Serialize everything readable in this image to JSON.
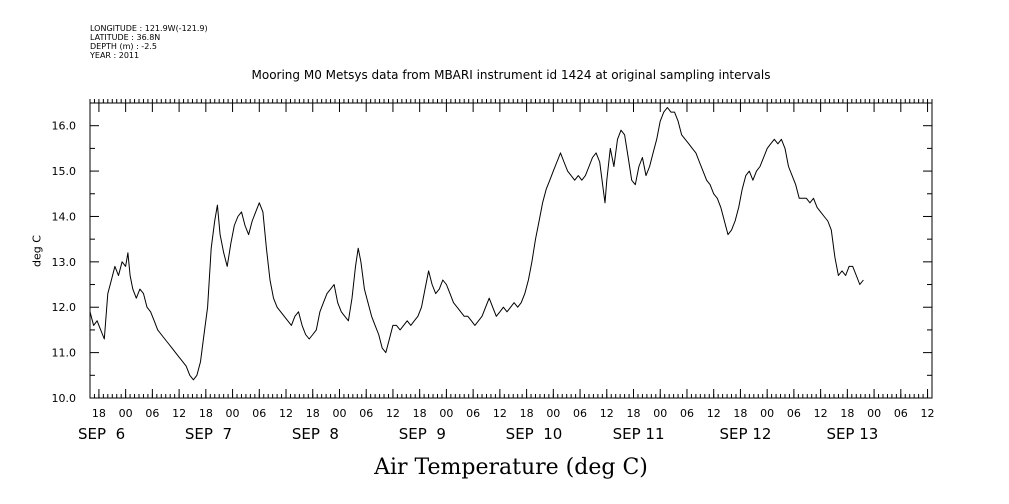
{
  "metadata": {
    "longitude": "LONGITUDE : 121.9W(-121.9)",
    "latitude": "LATITUDE : 36.8N",
    "depth": "DEPTH (m) : -2.5",
    "year": "YEAR : 2011"
  },
  "chart_data": {
    "type": "line",
    "title": "Mooring M0 Metsys data from MBARI instrument id 1424 at original sampling intervals",
    "xlabel": "Air Temperature (deg C)",
    "ylabel": "deg C",
    "ylim": [
      10.0,
      16.5
    ],
    "yticks": [
      "10.0",
      "11.0",
      "12.0",
      "13.0",
      "14.0",
      "15.0",
      "16.0"
    ],
    "xlim_hours": [
      -8,
      181
    ],
    "xtick_hour_labels": [
      {
        "t": -6,
        "label": "18"
      },
      {
        "t": 0,
        "label": "00"
      },
      {
        "t": 6,
        "label": "06"
      },
      {
        "t": 12,
        "label": "12"
      },
      {
        "t": 18,
        "label": "18"
      },
      {
        "t": 24,
        "label": "00"
      },
      {
        "t": 30,
        "label": "06"
      },
      {
        "t": 36,
        "label": "12"
      },
      {
        "t": 42,
        "label": "18"
      },
      {
        "t": 48,
        "label": "00"
      },
      {
        "t": 54,
        "label": "06"
      },
      {
        "t": 60,
        "label": "12"
      },
      {
        "t": 66,
        "label": "18"
      },
      {
        "t": 72,
        "label": "00"
      },
      {
        "t": 78,
        "label": "06"
      },
      {
        "t": 84,
        "label": "12"
      },
      {
        "t": 90,
        "label": "18"
      },
      {
        "t": 96,
        "label": "00"
      },
      {
        "t": 102,
        "label": "06"
      },
      {
        "t": 108,
        "label": "12"
      },
      {
        "t": 114,
        "label": "18"
      },
      {
        "t": 120,
        "label": "00"
      },
      {
        "t": 126,
        "label": "06"
      },
      {
        "t": 132,
        "label": "12"
      },
      {
        "t": 138,
        "label": "18"
      },
      {
        "t": 144,
        "label": "00"
      },
      {
        "t": 150,
        "label": "06"
      },
      {
        "t": 156,
        "label": "12"
      },
      {
        "t": 162,
        "label": "18"
      },
      {
        "t": 168,
        "label": "00"
      },
      {
        "t": 174,
        "label": "06"
      },
      {
        "t": 180,
        "label": "12"
      }
    ],
    "xtick_day_labels": [
      {
        "t": -8,
        "label": "SEP  6"
      },
      {
        "t": 16,
        "label": "SEP  7"
      },
      {
        "t": 40,
        "label": "SEP  8"
      },
      {
        "t": 64,
        "label": "SEP  9"
      },
      {
        "t": 88,
        "label": "SEP  10"
      },
      {
        "t": 112,
        "label": "SEP 11"
      },
      {
        "t": 136,
        "label": "SEP 12"
      },
      {
        "t": 160,
        "label": "SEP 13"
      }
    ],
    "series": [
      {
        "color": "#000000",
        "points": [
          [
            -8.0,
            11.9
          ],
          [
            -7.2,
            11.6
          ],
          [
            -6.4,
            11.7
          ],
          [
            -5.6,
            11.5
          ],
          [
            -4.8,
            11.3
          ],
          [
            -4.0,
            12.3
          ],
          [
            -3.2,
            12.6
          ],
          [
            -2.4,
            12.9
          ],
          [
            -1.6,
            12.7
          ],
          [
            -0.8,
            13.0
          ],
          [
            0.0,
            12.9
          ],
          [
            0.5,
            13.2
          ],
          [
            1.0,
            12.7
          ],
          [
            1.6,
            12.4
          ],
          [
            2.4,
            12.2
          ],
          [
            3.2,
            12.4
          ],
          [
            4.0,
            12.3
          ],
          [
            4.8,
            12.0
          ],
          [
            5.6,
            11.9
          ],
          [
            6.4,
            11.7
          ],
          [
            7.2,
            11.5
          ],
          [
            8.0,
            11.4
          ],
          [
            8.8,
            11.3
          ],
          [
            9.6,
            11.2
          ],
          [
            10.4,
            11.1
          ],
          [
            11.2,
            11.0
          ],
          [
            12.0,
            10.9
          ],
          [
            12.8,
            10.8
          ],
          [
            13.6,
            10.7
          ],
          [
            14.4,
            10.5
          ],
          [
            15.2,
            10.4
          ],
          [
            16.0,
            10.5
          ],
          [
            16.8,
            10.8
          ],
          [
            17.6,
            11.4
          ],
          [
            18.4,
            12.0
          ],
          [
            19.2,
            13.3
          ],
          [
            20.0,
            13.9
          ],
          [
            20.6,
            14.25
          ],
          [
            21.2,
            13.6
          ],
          [
            22.0,
            13.2
          ],
          [
            22.8,
            12.9
          ],
          [
            23.6,
            13.4
          ],
          [
            24.4,
            13.8
          ],
          [
            25.2,
            14.0
          ],
          [
            26.0,
            14.1
          ],
          [
            26.8,
            13.8
          ],
          [
            27.6,
            13.6
          ],
          [
            28.4,
            13.9
          ],
          [
            29.2,
            14.1
          ],
          [
            30.0,
            14.3
          ],
          [
            30.8,
            14.1
          ],
          [
            31.6,
            13.3
          ],
          [
            32.4,
            12.6
          ],
          [
            33.2,
            12.2
          ],
          [
            34.0,
            12.0
          ],
          [
            34.8,
            11.9
          ],
          [
            35.6,
            11.8
          ],
          [
            36.4,
            11.7
          ],
          [
            37.2,
            11.6
          ],
          [
            38.0,
            11.8
          ],
          [
            38.8,
            11.9
          ],
          [
            39.6,
            11.6
          ],
          [
            40.4,
            11.4
          ],
          [
            41.2,
            11.3
          ],
          [
            42.0,
            11.4
          ],
          [
            42.8,
            11.5
          ],
          [
            43.6,
            11.9
          ],
          [
            44.4,
            12.1
          ],
          [
            45.2,
            12.3
          ],
          [
            46.0,
            12.4
          ],
          [
            46.8,
            12.5
          ],
          [
            47.6,
            12.1
          ],
          [
            48.4,
            11.9
          ],
          [
            49.2,
            11.8
          ],
          [
            50.0,
            11.7
          ],
          [
            50.8,
            12.2
          ],
          [
            51.6,
            12.9
          ],
          [
            52.2,
            13.3
          ],
          [
            52.8,
            13.0
          ],
          [
            53.6,
            12.4
          ],
          [
            54.4,
            12.1
          ],
          [
            55.2,
            11.8
          ],
          [
            56.0,
            11.6
          ],
          [
            56.8,
            11.4
          ],
          [
            57.6,
            11.1
          ],
          [
            58.4,
            11.0
          ],
          [
            59.2,
            11.3
          ],
          [
            60.0,
            11.6
          ],
          [
            60.8,
            11.6
          ],
          [
            61.6,
            11.5
          ],
          [
            62.4,
            11.6
          ],
          [
            63.2,
            11.7
          ],
          [
            64.0,
            11.6
          ],
          [
            64.8,
            11.7
          ],
          [
            65.6,
            11.8
          ],
          [
            66.4,
            12.0
          ],
          [
            67.2,
            12.4
          ],
          [
            68.0,
            12.8
          ],
          [
            68.8,
            12.5
          ],
          [
            69.6,
            12.3
          ],
          [
            70.4,
            12.4
          ],
          [
            71.2,
            12.6
          ],
          [
            72.0,
            12.5
          ],
          [
            72.8,
            12.3
          ],
          [
            73.6,
            12.1
          ],
          [
            74.4,
            12.0
          ],
          [
            75.2,
            11.9
          ],
          [
            76.0,
            11.8
          ],
          [
            76.8,
            11.8
          ],
          [
            77.6,
            11.7
          ],
          [
            78.4,
            11.6
          ],
          [
            79.2,
            11.7
          ],
          [
            80.0,
            11.8
          ],
          [
            80.8,
            12.0
          ],
          [
            81.6,
            12.2
          ],
          [
            82.4,
            12.0
          ],
          [
            83.2,
            11.8
          ],
          [
            84.0,
            11.9
          ],
          [
            84.8,
            12.0
          ],
          [
            85.6,
            11.9
          ],
          [
            86.4,
            12.0
          ],
          [
            87.2,
            12.1
          ],
          [
            88.0,
            12.0
          ],
          [
            88.8,
            12.1
          ],
          [
            89.6,
            12.3
          ],
          [
            90.4,
            12.6
          ],
          [
            91.2,
            13.0
          ],
          [
            92.0,
            13.5
          ],
          [
            92.8,
            13.9
          ],
          [
            93.6,
            14.3
          ],
          [
            94.4,
            14.6
          ],
          [
            95.2,
            14.8
          ],
          [
            96.0,
            15.0
          ],
          [
            96.8,
            15.2
          ],
          [
            97.6,
            15.4
          ],
          [
            98.4,
            15.2
          ],
          [
            99.2,
            15.0
          ],
          [
            100.0,
            14.9
          ],
          [
            100.8,
            14.8
          ],
          [
            101.6,
            14.9
          ],
          [
            102.4,
            14.8
          ],
          [
            103.2,
            14.9
          ],
          [
            104.0,
            15.1
          ],
          [
            104.8,
            15.3
          ],
          [
            105.6,
            15.4
          ],
          [
            106.4,
            15.2
          ],
          [
            107.2,
            14.6
          ],
          [
            107.6,
            14.3
          ],
          [
            108.0,
            14.8
          ],
          [
            108.8,
            15.5
          ],
          [
            109.6,
            15.1
          ],
          [
            110.4,
            15.7
          ],
          [
            111.2,
            15.9
          ],
          [
            112.0,
            15.8
          ],
          [
            112.8,
            15.3
          ],
          [
            113.6,
            14.8
          ],
          [
            114.4,
            14.7
          ],
          [
            115.2,
            15.1
          ],
          [
            116.0,
            15.3
          ],
          [
            116.8,
            14.9
          ],
          [
            117.6,
            15.1
          ],
          [
            118.4,
            15.4
          ],
          [
            119.2,
            15.7
          ],
          [
            120.0,
            16.1
          ],
          [
            120.8,
            16.3
          ],
          [
            121.6,
            16.4
          ],
          [
            122.4,
            16.3
          ],
          [
            123.2,
            16.3
          ],
          [
            124.0,
            16.1
          ],
          [
            124.8,
            15.8
          ],
          [
            125.6,
            15.7
          ],
          [
            126.4,
            15.6
          ],
          [
            127.2,
            15.5
          ],
          [
            128.0,
            15.4
          ],
          [
            128.8,
            15.2
          ],
          [
            129.6,
            15.0
          ],
          [
            130.4,
            14.8
          ],
          [
            131.2,
            14.7
          ],
          [
            132.0,
            14.5
          ],
          [
            132.8,
            14.4
          ],
          [
            133.6,
            14.2
          ],
          [
            134.4,
            13.9
          ],
          [
            135.2,
            13.6
          ],
          [
            136.0,
            13.7
          ],
          [
            136.8,
            13.9
          ],
          [
            137.6,
            14.2
          ],
          [
            138.4,
            14.6
          ],
          [
            139.2,
            14.9
          ],
          [
            140.0,
            15.0
          ],
          [
            140.8,
            14.8
          ],
          [
            141.6,
            15.0
          ],
          [
            142.4,
            15.1
          ],
          [
            143.2,
            15.3
          ],
          [
            144.0,
            15.5
          ],
          [
            144.8,
            15.6
          ],
          [
            145.6,
            15.7
          ],
          [
            146.4,
            15.6
          ],
          [
            147.2,
            15.7
          ],
          [
            148.0,
            15.5
          ],
          [
            148.8,
            15.1
          ],
          [
            149.6,
            14.9
          ],
          [
            150.4,
            14.7
          ],
          [
            151.2,
            14.4
          ],
          [
            152.0,
            14.4
          ],
          [
            152.8,
            14.4
          ],
          [
            153.6,
            14.3
          ],
          [
            154.4,
            14.4
          ],
          [
            155.2,
            14.2
          ],
          [
            156.0,
            14.1
          ],
          [
            156.8,
            14.0
          ],
          [
            157.6,
            13.9
          ],
          [
            158.4,
            13.7
          ],
          [
            159.2,
            13.1
          ],
          [
            160.0,
            12.7
          ],
          [
            160.8,
            12.8
          ],
          [
            161.6,
            12.7
          ],
          [
            162.4,
            12.9
          ],
          [
            163.2,
            12.9
          ],
          [
            164.0,
            12.7
          ],
          [
            164.8,
            12.5
          ],
          [
            165.6,
            12.6
          ]
        ]
      }
    ]
  }
}
